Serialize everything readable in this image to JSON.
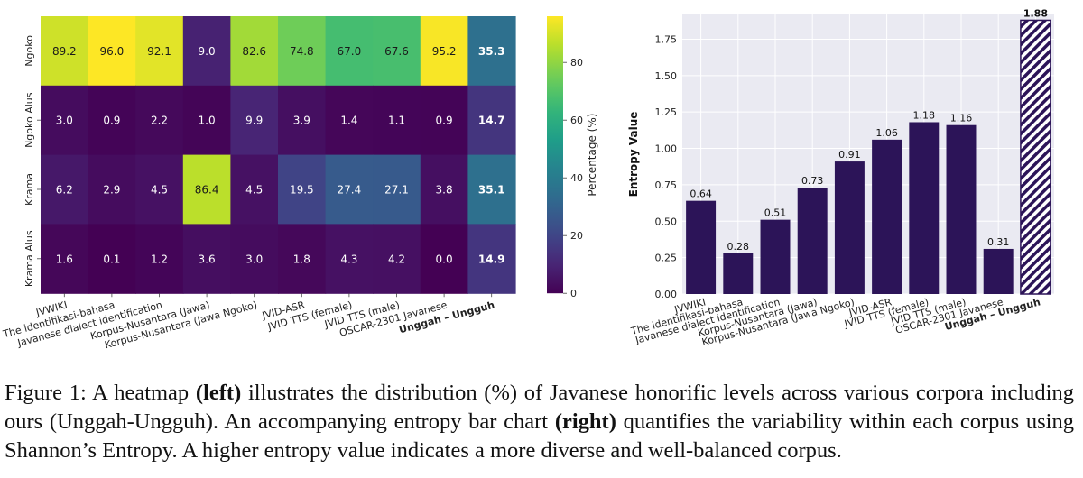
{
  "chart_data": [
    {
      "type": "heatmap",
      "rows": [
        "Ngoko",
        "Ngoko Alus",
        "Krama",
        "Krama Alus"
      ],
      "columns": [
        "JVWIKI",
        "The identifikasi-bahasa",
        "Javanese dialect identification",
        "Korpus-Nusantara (Jawa)",
        "Korpus-Nusantara (Jawa Ngoko)",
        "JVID-ASR",
        "JVID TTS (female)",
        "JVID TTS (male)",
        "OSCAR-2301 Javanese",
        "Unggah – Ungguh"
      ],
      "highlight_column": "Unggah – Ungguh",
      "values": [
        [
          89.2,
          96.0,
          92.1,
          9.0,
          82.6,
          74.8,
          67.0,
          67.6,
          95.2,
          35.3
        ],
        [
          3.0,
          0.9,
          2.2,
          1.0,
          9.9,
          3.9,
          1.4,
          1.1,
          0.9,
          14.7
        ],
        [
          6.2,
          2.9,
          4.5,
          86.4,
          4.5,
          19.5,
          27.4,
          27.1,
          3.8,
          35.1
        ],
        [
          1.6,
          0.1,
          1.2,
          3.6,
          3.0,
          1.8,
          4.3,
          4.2,
          0.0,
          14.9
        ]
      ],
      "colorbar": {
        "label": "Percentage (%)",
        "ticks": [
          0,
          20,
          40,
          60,
          80
        ],
        "range": [
          0,
          96
        ],
        "colormap": "viridis"
      }
    },
    {
      "type": "bar",
      "categories": [
        "JVWIKI",
        "The identifikasi-bahasa",
        "Javanese dialect identification",
        "Korpus-Nusantara (Jawa)",
        "Korpus-Nusantara (Jawa Ngoko)",
        "JVID-ASR",
        "JVID TTS (female)",
        "JVID TTS (male)",
        "OSCAR-2301 Javanese",
        "Unggah – Ungguh"
      ],
      "values": [
        0.64,
        0.28,
        0.51,
        0.73,
        0.91,
        1.06,
        1.18,
        1.16,
        0.31,
        1.88
      ],
      "value_labels": [
        "0.64",
        "0.28",
        "0.51",
        "0.73",
        "0.91",
        "1.06",
        "1.18",
        "1.16",
        "0.31",
        "1.88"
      ],
      "highlight_category": "Unggah – Ungguh",
      "ylabel": "Entropy Value",
      "xlabel": "",
      "ylim": [
        0,
        1.92
      ],
      "yticks": [
        "0.00",
        "0.25",
        "0.50",
        "0.75",
        "1.00",
        "1.25",
        "1.50",
        "1.75"
      ],
      "grid": true,
      "colors": {
        "bar": "#2c1458",
        "highlight_hatch": "#2c1458",
        "background": "#eaeaf2"
      }
    }
  ],
  "caption": {
    "lead": "Figure 1: A heatmap ",
    "left": "(left)",
    "mid": " illustrates the distribution (%) of Javanese honorific levels across various corpora including ours (Unggah-Ungguh). An accompanying entropy bar chart ",
    "right": "(right)",
    "tail": " quantifies the variability within each corpus using Shannon’s Entropy. A higher entropy value indicates a more diverse and well-balanced corpus."
  }
}
